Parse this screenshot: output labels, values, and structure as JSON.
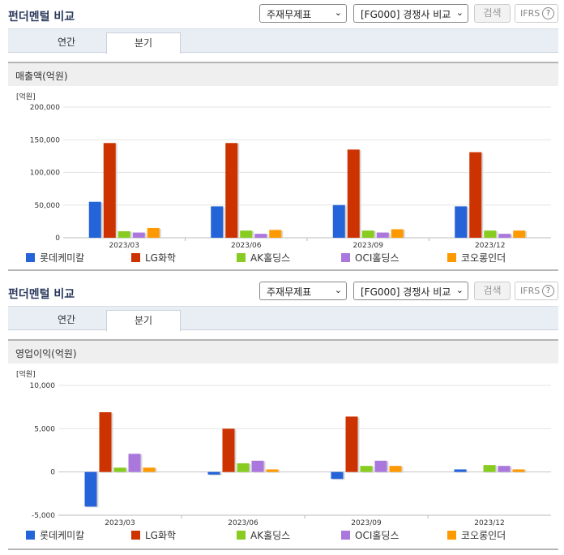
{
  "panels": [
    {
      "title": "펀더멘털 비교",
      "select_statement": "주재무제표",
      "select_compare": "[FG000] 경쟁사 비교",
      "search_label": "검색",
      "ifrs_label": "IFRS",
      "help_label": "?",
      "tabs": [
        "연간",
        "분기"
      ],
      "active_tab": 1,
      "metric_label": "매출액(억원)"
    },
    {
      "title": "펀더멘털 비교",
      "select_statement": "주재무제표",
      "select_compare": "[FG000] 경쟁사 비교",
      "search_label": "검색",
      "ifrs_label": "IFRS",
      "help_label": "?",
      "tabs": [
        "연간",
        "분기"
      ],
      "active_tab": 1,
      "metric_label": "영업이익(억원)"
    }
  ],
  "colors": [
    "#2563d9",
    "#cc3300",
    "#88cc22",
    "#aa77dd",
    "#ff9900"
  ],
  "chart_data": [
    {
      "type": "bar",
      "unit_label": "[억원]",
      "categories": [
        "2023/03",
        "2023/06",
        "2023/09",
        "2023/12"
      ],
      "ylim": [
        0,
        200000
      ],
      "yticks": [
        0,
        50000,
        100000,
        150000,
        200000
      ],
      "ytick_labels": [
        "0",
        "50,000",
        "100,000",
        "150,000",
        "200,000"
      ],
      "grid": true,
      "legend_position": "bottom",
      "series": [
        {
          "name": "롯데케미칼",
          "values": [
            55000,
            48000,
            50000,
            48000
          ]
        },
        {
          "name": "LG화학",
          "values": [
            145000,
            145000,
            135000,
            131000
          ]
        },
        {
          "name": "AK홀딩스",
          "values": [
            10000,
            11000,
            11000,
            11000
          ]
        },
        {
          "name": "OCI홀딩스",
          "values": [
            8000,
            6000,
            8000,
            6000
          ]
        },
        {
          "name": "코오롱인더",
          "values": [
            15000,
            12000,
            13000,
            11000
          ]
        }
      ]
    },
    {
      "type": "bar",
      "unit_label": "[억원]",
      "categories": [
        "2023/03",
        "2023/06",
        "2023/09",
        "2023/12"
      ],
      "ylim": [
        -5000,
        10000
      ],
      "yticks": [
        -5000,
        0,
        5000,
        10000
      ],
      "ytick_labels": [
        "-5,000",
        "0",
        "5,000",
        "10,000"
      ],
      "grid": true,
      "legend_position": "bottom",
      "series": [
        {
          "name": "롯데케미칼",
          "values": [
            -4000,
            -300,
            -800,
            300
          ]
        },
        {
          "name": "LG화학",
          "values": [
            6900,
            5000,
            6400,
            0
          ]
        },
        {
          "name": "AK홀딩스",
          "values": [
            500,
            1000,
            700,
            800
          ]
        },
        {
          "name": "OCI홀딩스",
          "values": [
            2100,
            1300,
            1300,
            700
          ]
        },
        {
          "name": "코오롱인더",
          "values": [
            500,
            300,
            700,
            300
          ]
        }
      ]
    }
  ]
}
